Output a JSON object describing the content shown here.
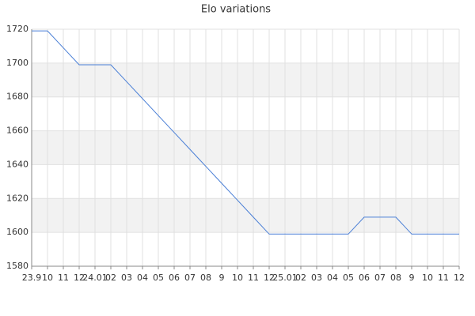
{
  "chart_data": {
    "type": "line",
    "title": "Elo variations",
    "categories": [
      "23.9",
      "10",
      "11",
      "12",
      "24.01",
      "02",
      "03",
      "04",
      "05",
      "06",
      "07",
      "08",
      "9",
      "10",
      "11",
      "12",
      "25.01",
      "02",
      "03",
      "04",
      "05",
      "06",
      "07",
      "08",
      "9",
      "10",
      "11",
      "12"
    ],
    "values": [
      1719,
      1719,
      1709,
      1699,
      1699,
      1699,
      1689,
      1679,
      1669,
      1659,
      1649,
      1639,
      1629,
      1619,
      1609,
      1599,
      1599,
      1599,
      1599,
      1599,
      1599,
      1609,
      1609,
      1609,
      1599,
      1599,
      1599,
      1599
    ],
    "color": "#4a7fd6",
    "ylim": [
      1580,
      1720
    ],
    "yticks": [
      1580,
      1600,
      1620,
      1640,
      1660,
      1680,
      1700,
      1720
    ],
    "grid": true
  }
}
